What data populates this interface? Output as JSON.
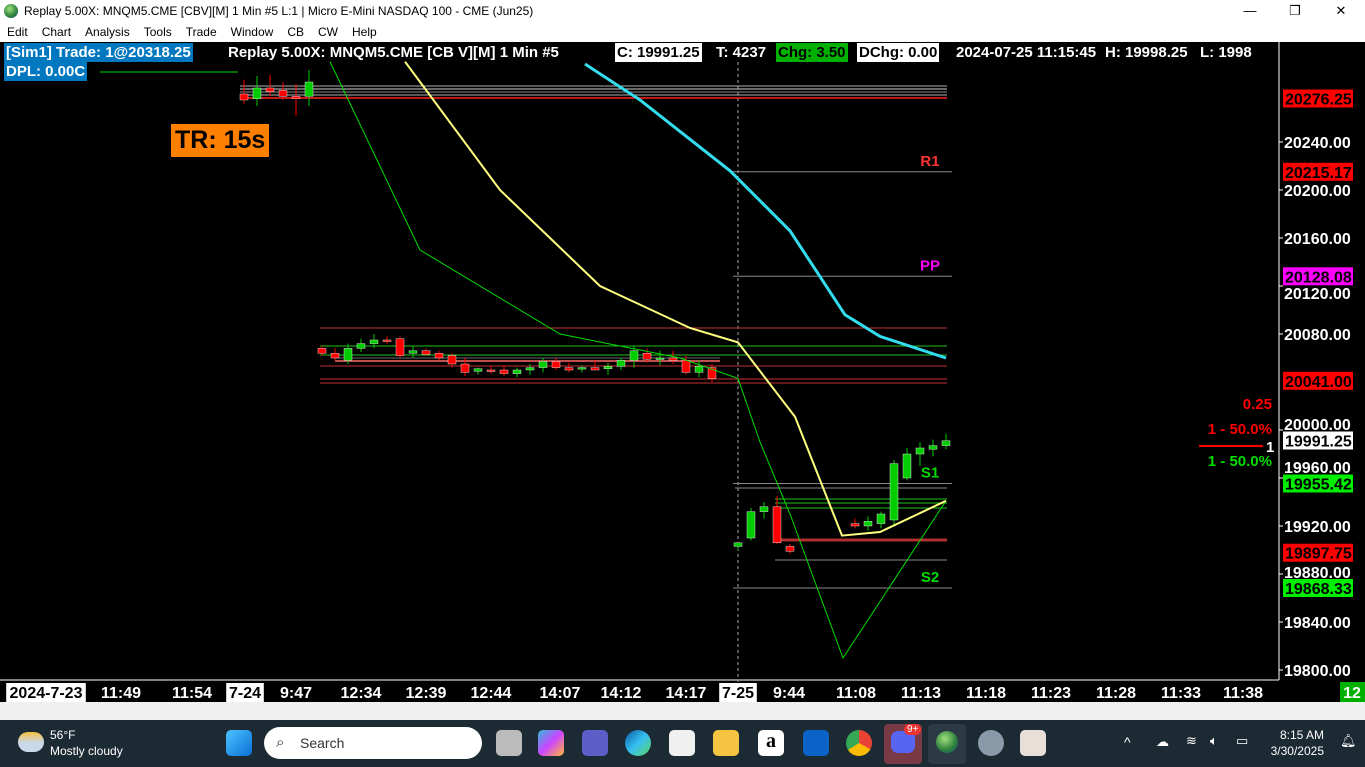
{
  "window": {
    "title": "Replay 5.00X: MNQM5.CME [CBV][M]  1 Min  #5 L:1 | Micro E-Mini NASDAQ 100 - CME (Jun25)",
    "minimize": "—",
    "maximize": "❐",
    "close": "✕"
  },
  "menu": [
    "Edit",
    "Chart",
    "Analysis",
    "Tools",
    "Trade",
    "Window",
    "CB",
    "CW",
    "Help"
  ],
  "header": {
    "trade": "[Sim1] Trade: 1@20318.25",
    "dpl": "DPL: 0.00C",
    "symbol": "Replay 5.00X: MNQM5.CME [CB V][M]  1 Min  #5",
    "close": "C: 19991.25",
    "ticks": "T: 4237",
    "chg": "Chg: 3.50",
    "dchg": "DChg: 0.00",
    "datetime": "2024-07-25 11:15:45",
    "high": "H: 19998.25",
    "low": "L: 1998"
  },
  "timer": "TR: 15s",
  "colors": {
    "bull": "#00cc00",
    "bear": "#ff0000",
    "ma_yellow": "#ffff80",
    "ma_green": "#00dd00",
    "ma_cyan": "#33ddee",
    "pp": "#ff00ff",
    "header_blue": "#0078c0"
  },
  "pivots": [
    {
      "label": "R1",
      "price": 20215.17,
      "color": "#ff3333"
    },
    {
      "label": "PP",
      "price": 20128.08,
      "color": "#ff00ff"
    },
    {
      "label": "S1",
      "price": 19955.42,
      "color": "#00dd00"
    },
    {
      "label": "S2",
      "price": 19868.33,
      "color": "#00dd00"
    }
  ],
  "price_axis": {
    "ticks": [
      "20240.00",
      "20200.00",
      "20160.00",
      "20120.00",
      "20080.00",
      "20000.00",
      "19960.00",
      "19920.00",
      "19880.00",
      "19840.00",
      "19800.00"
    ],
    "markers": [
      {
        "text": "20276.25",
        "price": 20276.25,
        "bg": "#ff0000"
      },
      {
        "text": "20215.17",
        "price": 20215.17,
        "bg": "#ff0000"
      },
      {
        "text": "20128.08",
        "price": 20128.08,
        "bg": "#ff00ff"
      },
      {
        "text": "20041.00",
        "price": 20041.0,
        "bg": "#ff0000"
      },
      {
        "text": "19991.25",
        "price": 19991.25,
        "bg": "#ffffff"
      },
      {
        "text": "19955.42",
        "price": 19955.42,
        "bg": "#00ee00"
      },
      {
        "text": "19897.75",
        "price": 19897.75,
        "bg": "#ff0000"
      },
      {
        "text": "19868.33",
        "price": 19868.33,
        "bg": "#00ee00"
      }
    ]
  },
  "order_info": {
    "tick": "0.25",
    "sell": "1 - 50.0%",
    "buy": "1 - 50.0%",
    "qty": "1"
  },
  "time_axis": [
    {
      "t": "2024-7-23",
      "date": true
    },
    {
      "t": "11:49"
    },
    {
      "t": "11:54"
    },
    {
      "t": "7-24",
      "date": true
    },
    {
      "t": "9:47"
    },
    {
      "t": "12:34"
    },
    {
      "t": "12:39"
    },
    {
      "t": "12:44"
    },
    {
      "t": "14:07"
    },
    {
      "t": "14:12"
    },
    {
      "t": "14:17"
    },
    {
      "t": "7-25",
      "date": true
    },
    {
      "t": "9:44"
    },
    {
      "t": "11:08"
    },
    {
      "t": "11:13"
    },
    {
      "t": "11:18"
    },
    {
      "t": "11:23"
    },
    {
      "t": "11:28"
    },
    {
      "t": "11:33"
    },
    {
      "t": "11:38"
    }
  ],
  "bar_count": "12",
  "candles": {
    "s1": [
      [
        20280,
        20292,
        20272,
        20275
      ],
      [
        20276,
        20295,
        20270,
        20285
      ],
      [
        20285,
        20296,
        20278,
        20282
      ],
      [
        20283,
        20290,
        20275,
        20278
      ],
      [
        20278,
        20288,
        20262,
        20276
      ],
      [
        20278,
        20300,
        20270,
        20290
      ]
    ],
    "s2": [
      [
        20068,
        20070,
        20062,
        20064
      ],
      [
        20064,
        20068,
        20058,
        20060
      ],
      [
        20058,
        20072,
        20055,
        20068
      ],
      [
        20068,
        20076,
        20065,
        20072
      ],
      [
        20072,
        20080,
        20068,
        20075
      ],
      [
        20075,
        20078,
        20072,
        20074
      ],
      [
        20076,
        20078,
        20060,
        20062
      ],
      [
        20064,
        20070,
        20060,
        20066
      ],
      [
        20066,
        20068,
        20062,
        20063
      ],
      [
        20064,
        20066,
        20058,
        20060
      ],
      [
        20062,
        20064,
        20052,
        20055
      ],
      [
        20055,
        20060,
        20045,
        20048
      ],
      [
        20049,
        20052,
        20046,
        20051
      ],
      [
        20050,
        20053,
        20047,
        20049
      ],
      [
        20050,
        20054,
        20045,
        20047
      ],
      [
        20047,
        20052,
        20044,
        20050
      ],
      [
        20050,
        20055,
        20046,
        20052
      ],
      [
        20052,
        20060,
        20048,
        20057
      ],
      [
        20057,
        20060,
        20050,
        20052
      ],
      [
        20052,
        20056,
        20048,
        20050
      ],
      [
        20051,
        20054,
        20048,
        20052
      ],
      [
        20052,
        20058,
        20050,
        20050
      ],
      [
        20051,
        20056,
        20046,
        20053
      ],
      [
        20053,
        20060,
        20050,
        20058
      ],
      [
        20058,
        20070,
        20052,
        20066
      ],
      [
        20064,
        20068,
        20056,
        20059
      ],
      [
        20059,
        20066,
        20054,
        20060
      ],
      [
        20060,
        20066,
        20055,
        20058
      ],
      [
        20058,
        20062,
        20046,
        20048
      ],
      [
        20048,
        20058,
        20044,
        20053
      ],
      [
        20052,
        20055,
        20040,
        20043
      ]
    ],
    "s3": [
      [
        19903,
        19906,
        19900,
        19906
      ],
      [
        19910,
        19935,
        19908,
        19932
      ],
      [
        19932,
        19940,
        19926,
        19936
      ],
      [
        19936,
        19945,
        19905,
        19906
      ],
      [
        19903,
        19905,
        19897,
        19899
      ],
      null,
      null,
      null,
      null,
      [
        19922,
        19926,
        19918,
        19920
      ],
      [
        19920,
        19928,
        19916,
        19924
      ],
      [
        19922,
        19932,
        19918,
        19930
      ],
      [
        19925,
        19975,
        19920,
        19972
      ],
      [
        19960,
        19985,
        19958,
        19980
      ],
      [
        19980,
        19990,
        19970,
        19985
      ],
      [
        19984,
        19992,
        19978,
        19987
      ],
      [
        19987,
        19997,
        19984,
        19991
      ]
    ]
  },
  "moving_averages": {
    "yellow": [
      20307,
      20200,
      20120,
      20085,
      20073,
      20011,
      19912,
      19915,
      19941
    ],
    "green": [
      20307,
      20150,
      20080,
      20060,
      20043,
      19990,
      19930,
      19810,
      19941
    ],
    "cyan": [
      20305,
      20275,
      20216,
      20166,
      20096,
      20078,
      20060
    ]
  },
  "taskbar": {
    "weather_temp": "56°F",
    "weather_text": "Mostly cloudy",
    "search": "Search",
    "time": "8:15 AM",
    "date": "3/30/2025",
    "discord_badge": "9+"
  }
}
